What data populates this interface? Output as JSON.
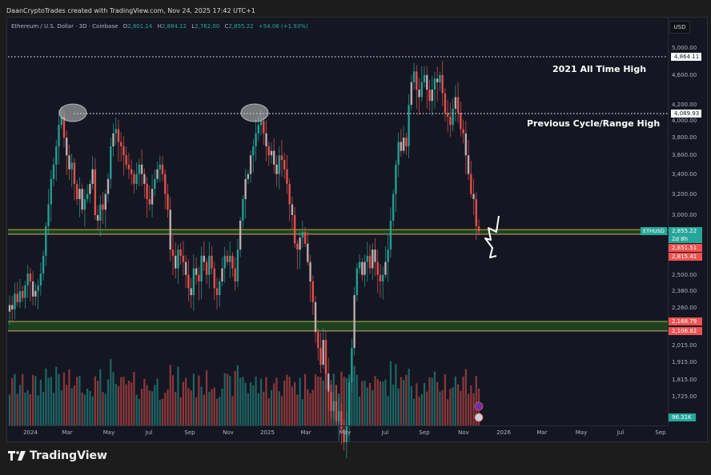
{
  "header": {
    "attribution": "DaanCryptoTrades created with TradingView.com, Nov 24, 2025 17:42 UTC+1"
  },
  "legend": {
    "symbol": "Ethereum / U.S. Dollar · 3D · Coinbase",
    "open_label": "O",
    "open": "2,801.14",
    "high_label": "H",
    "high": "2,884.12",
    "low_label": "L",
    "low": "2,762.00",
    "close_label": "C",
    "close": "2,855.22",
    "change": "+54.08 (+1.93%)"
  },
  "currency_button": "USD",
  "annotations": {
    "ath": "2021 All Time High",
    "range_high": "Previous Cycle/Range High"
  },
  "logo": {
    "text": "TradingView"
  },
  "colors": {
    "up": "#26a69a",
    "down": "#ef5350",
    "background": "#141722",
    "zone_fill": "#1e4a1c",
    "zone_top_line": "#d4a373",
    "zone_bottom_line": "#b8b04a"
  },
  "chart_data": {
    "type": "candlestick",
    "title": "Ethereum / U.S. Dollar · 3D · Coinbase",
    "scale": "log",
    "ylabel": "USD",
    "ylim": [
      1640,
      5150
    ],
    "y_ticks": [
      "5,000.00",
      "4,600.00",
      "4,200.00",
      "4,000.00",
      "3,800.00",
      "3,600.00",
      "3,400.00",
      "3,200.00",
      "3,000.00",
      "2,500.00",
      "2,380.00",
      "2,260.00",
      "2,015.00",
      "1,915.00",
      "1,815.00",
      "1,725.00"
    ],
    "x_ticks": [
      "2024",
      "Mar",
      "May",
      "Jul",
      "Sep",
      "Nov",
      "2025",
      "Mar",
      "May",
      "Jul",
      "Sep",
      "Nov",
      "2026",
      "Mar",
      "May",
      "Jul",
      "Sep"
    ],
    "price_tags": [
      {
        "label": "4,864.11",
        "price": 4864.11,
        "style": "white"
      },
      {
        "label": "4,089.93",
        "price": 4089.93,
        "style": "white"
      },
      {
        "label": "2,855.22",
        "sub": "2d 8h",
        "price": 2855.22,
        "style": "green",
        "symbol": "ETHUSD"
      },
      {
        "label": "2,851.51",
        "price": 2851.51,
        "style": "red"
      },
      {
        "label": "2,815.41",
        "price": 2815.41,
        "style": "red"
      },
      {
        "label": "2,168.79",
        "price": 2168.79,
        "style": "red"
      },
      {
        "label": "2,106.82",
        "price": 2106.82,
        "style": "red"
      }
    ],
    "volume_tag": "96.31K",
    "horizontal_lines": [
      {
        "price": 4864.11,
        "style": "dotted",
        "label": "2021 All Time High"
      },
      {
        "price": 4089.93,
        "style": "dotted",
        "label": "Previous Cycle/Range High"
      }
    ],
    "zones": [
      {
        "top": 2870,
        "bottom": 2830,
        "name": "current-support-zone"
      },
      {
        "top": 2168.79,
        "bottom": 2106.82,
        "name": "lower-support-zone"
      }
    ],
    "highlights": [
      {
        "date": "Mar 2024",
        "price": 4090,
        "shape": "ellipse"
      },
      {
        "date": "Dec 2024",
        "price": 4090,
        "shape": "ellipse"
      }
    ],
    "closes": [
      2280,
      2250,
      2360,
      2300,
      2380,
      2330,
      2420,
      2510,
      2450,
      2340,
      2380,
      2420,
      2510,
      2650,
      2900,
      3100,
      3350,
      3500,
      3700,
      3950,
      4050,
      3800,
      3600,
      3450,
      3520,
      3300,
      3150,
      3250,
      3050,
      3150,
      3200,
      3300,
      3450,
      3000,
      2950,
      3100,
      3050,
      3200,
      3350,
      3700,
      3850,
      3900,
      3750,
      3700,
      3600,
      3500,
      3450,
      3400,
      3300,
      3400,
      3500,
      3400,
      3300,
      3150,
      3100,
      3250,
      3350,
      3450,
      3500,
      3400,
      3200,
      3050,
      2700,
      2650,
      2550,
      2700,
      2650,
      2600,
      2500,
      2400,
      2350,
      2550,
      2500,
      2450,
      2650,
      2600,
      2500,
      2650,
      2550,
      2400,
      2350,
      2450,
      2550,
      2650,
      2600,
      2650,
      2550,
      2450,
      2700,
      2950,
      3150,
      3350,
      3400,
      3600,
      3700,
      3850,
      3950,
      4000,
      3850,
      3700,
      3600,
      3650,
      3500,
      3400,
      3600,
      3550,
      3450,
      3300,
      3100,
      3000,
      2750,
      2700,
      2800,
      2850,
      2750,
      2600,
      2450,
      2300,
      2100,
      2000,
      1900,
      2050,
      1850,
      1750,
      1650,
      1700,
      1600,
      1650,
      1560,
      1500,
      1580,
      1800,
      2000,
      2350,
      2550,
      2600,
      2500,
      2600,
      2650,
      2550,
      2700,
      2600,
      2500,
      2450,
      2500,
      2600,
      2700,
      2950,
      3200,
      3500,
      3750,
      3650,
      3800,
      3700,
      4200,
      4500,
      4650,
      4400,
      4300,
      4500,
      4600,
      4400,
      4250,
      4400,
      4550,
      4500,
      4600,
      4350,
      4100,
      4050,
      3950,
      4150,
      4300,
      4100,
      3900,
      3850,
      3600,
      3400,
      3200,
      3150,
      2900,
      2855
    ],
    "current_price": "2,855.22"
  }
}
